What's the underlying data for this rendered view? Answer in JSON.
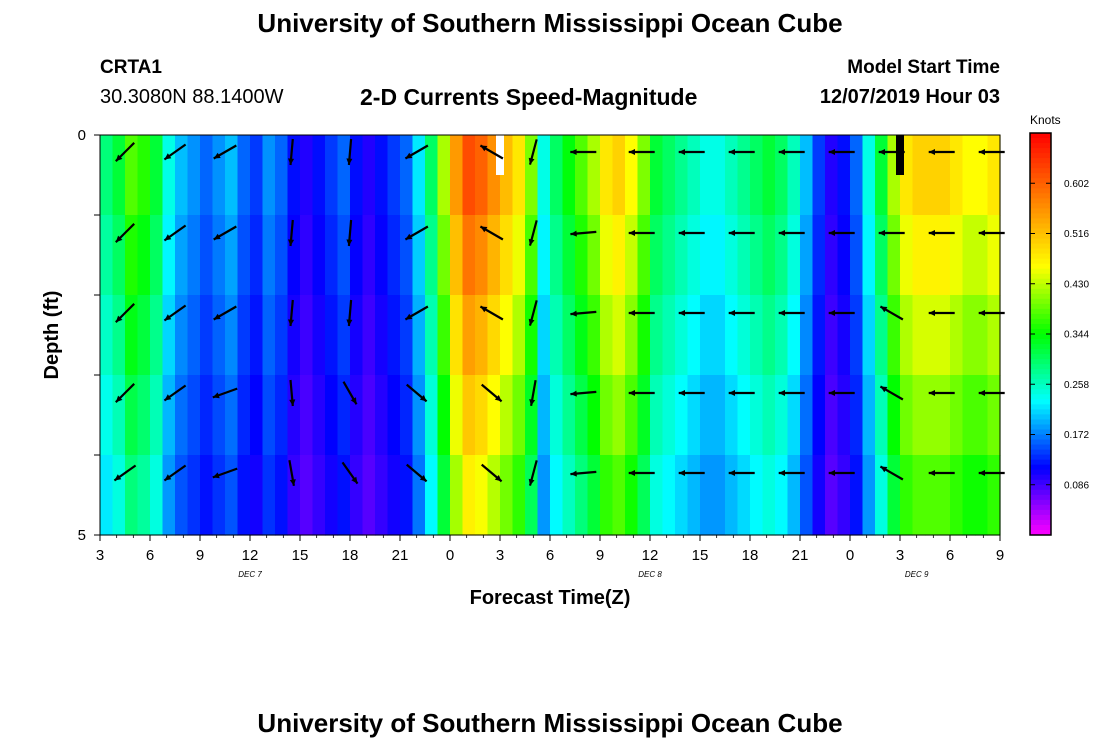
{
  "header": {
    "title": "University of Southern Mississippi Ocean Cube",
    "station_id": "CRTA1",
    "station_coords": "30.3080N 88.1400W",
    "chart_title": "2-D Currents Speed-Magnitude",
    "model_start_label": "Model Start Time",
    "model_start_value": "12/07/2019 Hour 03"
  },
  "footer": {
    "title": "University of Southern Mississippi Ocean Cube"
  },
  "chart_data": {
    "type": "heatmap",
    "title": "2-D Currents Speed-Magnitude",
    "xlabel": "Forecast Time(Z)",
    "ylabel": "Depth (ft)",
    "x_tick_labels": [
      "3",
      "6",
      "9",
      "12",
      "15",
      "18",
      "21",
      "0",
      "3",
      "6",
      "9",
      "12",
      "15",
      "18",
      "21",
      "0",
      "3",
      "6",
      "9"
    ],
    "day_labels": [
      {
        "label": "DEC 7",
        "at_hour": 12
      },
      {
        "label": "DEC 8",
        "at_hour": 36
      },
      {
        "label": "DEC 9",
        "at_hour": 52
      }
    ],
    "y_tick_labels": [
      "0",
      "5"
    ],
    "ylim": [
      0,
      5
    ],
    "xlim_hours": [
      3,
      57
    ],
    "colorbar": {
      "unit": "Knots",
      "range": [
        0.0,
        0.688
      ],
      "ticks": [
        "0.086",
        "0.172",
        "0.258",
        "0.344",
        "0.430",
        "0.516",
        "0.602"
      ],
      "colors": [
        "#ff00ff",
        "#8000ff",
        "#0000ff",
        "#0080ff",
        "#00ffff",
        "#00ff80",
        "#00ff00",
        "#80ff00",
        "#ffff00",
        "#ffc000",
        "#ff8000",
        "#ff4000",
        "#ff0000"
      ]
    },
    "missing_marks": [
      {
        "hour": 27.0,
        "color": "#ffffff"
      },
      {
        "hour": 51.0,
        "color": "#000000"
      }
    ],
    "speed_columns_knots": [
      0.29,
      0.32,
      0.38,
      0.36,
      0.32,
      0.24,
      0.2,
      0.18,
      0.16,
      0.18,
      0.2,
      0.16,
      0.14,
      0.18,
      0.16,
      0.12,
      0.1,
      0.12,
      0.14,
      0.16,
      0.12,
      0.1,
      0.12,
      0.14,
      0.16,
      0.22,
      0.3,
      0.42,
      0.55,
      0.62,
      0.6,
      0.56,
      0.52,
      0.48,
      0.4,
      0.24,
      0.3,
      0.34,
      0.38,
      0.42,
      0.48,
      0.5,
      0.46,
      0.4,
      0.32,
      0.3,
      0.28,
      0.26,
      0.24,
      0.24,
      0.26,
      0.28,
      0.3,
      0.32,
      0.3,
      0.26,
      0.2,
      0.14,
      0.1,
      0.12,
      0.16,
      0.24,
      0.32,
      0.42,
      0.48,
      0.5,
      0.5,
      0.5,
      0.48,
      0.46,
      0.46,
      0.48
    ],
    "arrow_columns_hours": [
      4.5,
      7.5,
      10.5,
      14.5,
      18,
      22,
      26.5,
      29,
      32,
      35.5,
      38.5,
      41.5,
      44.5,
      47.5,
      50.5,
      53.5,
      56.5
    ],
    "arrow_directions_deg": [
      [
        225,
        215,
        210,
        265,
        265,
        210,
        150,
        255,
        180,
        180,
        180,
        180,
        180,
        180,
        180,
        180,
        180
      ],
      [
        225,
        215,
        210,
        265,
        265,
        210,
        150,
        255,
        185,
        180,
        180,
        180,
        180,
        180,
        180,
        180,
        180
      ],
      [
        225,
        215,
        210,
        265,
        265,
        210,
        150,
        255,
        185,
        180,
        180,
        180,
        180,
        180,
        150,
        180,
        180
      ],
      [
        225,
        215,
        200,
        275,
        300,
        320,
        320,
        260,
        185,
        180,
        180,
        180,
        180,
        180,
        150,
        180,
        180
      ],
      [
        215,
        215,
        200,
        280,
        305,
        320,
        320,
        255,
        185,
        180,
        180,
        180,
        180,
        180,
        150,
        180,
        180
      ]
    ]
  }
}
